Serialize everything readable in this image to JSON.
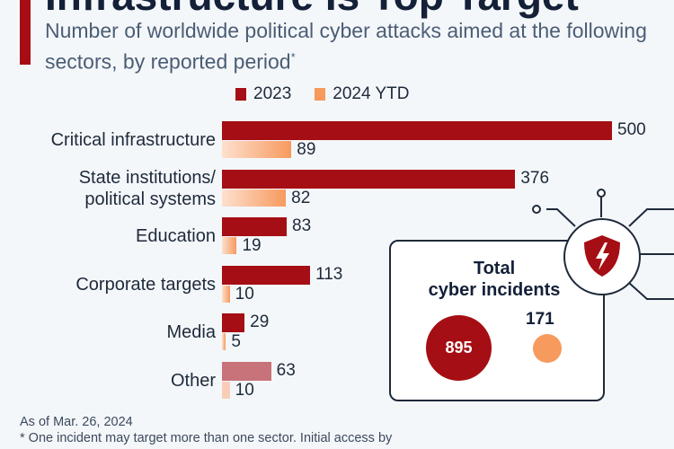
{
  "title": "Infrastructure Is Top Target",
  "subtitle": "Number of worldwide political cyber attacks aimed at the following sectors, by reported period",
  "subtitle_mark": "*",
  "colors": {
    "y2023": "#a50e14",
    "y2024": "#f79a5e",
    "other2023": "#c8727a",
    "other2024": "#f9cdb8"
  },
  "chart_data": {
    "type": "bar",
    "orientation": "horizontal",
    "categories": [
      "Critical infrastructure",
      "State institutions/\npolitical systems",
      "Education",
      "Corporate targets",
      "Media",
      "Other"
    ],
    "series": [
      {
        "name": "2023",
        "values": [
          500,
          376,
          83,
          113,
          29,
          63
        ]
      },
      {
        "name": "2024 YTD",
        "values": [
          89,
          82,
          19,
          10,
          5,
          10
        ]
      }
    ],
    "xlim": [
      0,
      500
    ],
    "grid": false,
    "legend": "top"
  },
  "totals": {
    "label": "Total\ncyber incidents",
    "value_2023": "895",
    "value_2024": "171",
    "icon": "shield-lightning-icon"
  },
  "footer": {
    "line1": "As of Mar. 26, 2024",
    "line2": "* One incident may target more than one sector. Initial access by"
  }
}
